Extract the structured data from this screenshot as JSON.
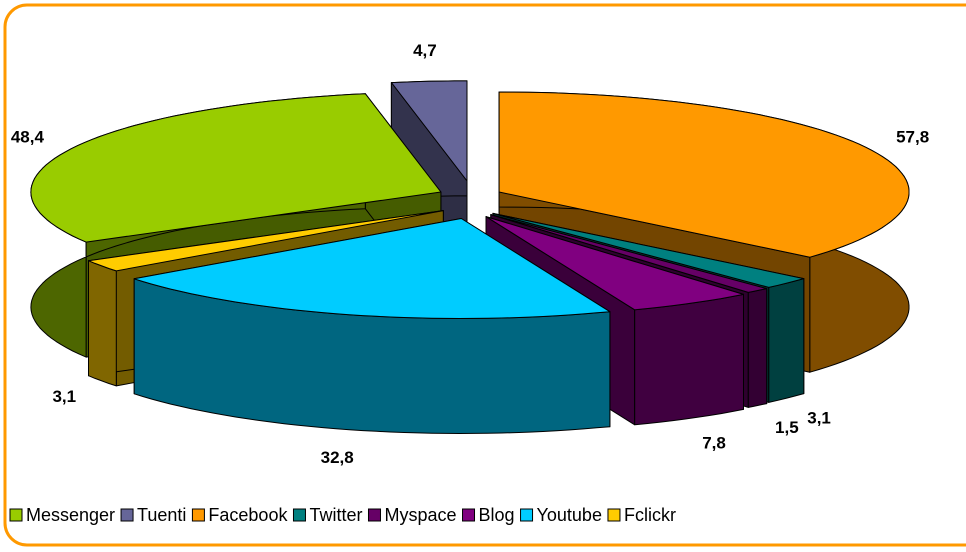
{
  "chart_data": {
    "type": "pie3d",
    "categories": [
      "Messenger",
      "Tuenti",
      "Facebook",
      "Twitter",
      "Myspace",
      "Blog",
      "Youtube",
      "Fclickr"
    ],
    "values": [
      48.4,
      4.7,
      57.8,
      3.1,
      1.5,
      7.8,
      32.8,
      3.1
    ],
    "value_labels": [
      "48,4",
      "4,7",
      "57,8",
      "3,1",
      "1,5",
      "7,8",
      "32,8",
      "3,1"
    ],
    "colors": [
      "#99cc00",
      "#666699",
      "#ff9900",
      "#008080",
      "#660066",
      "#800080",
      "#00ccff",
      "#ffcc00"
    ],
    "legend": "bottom"
  }
}
